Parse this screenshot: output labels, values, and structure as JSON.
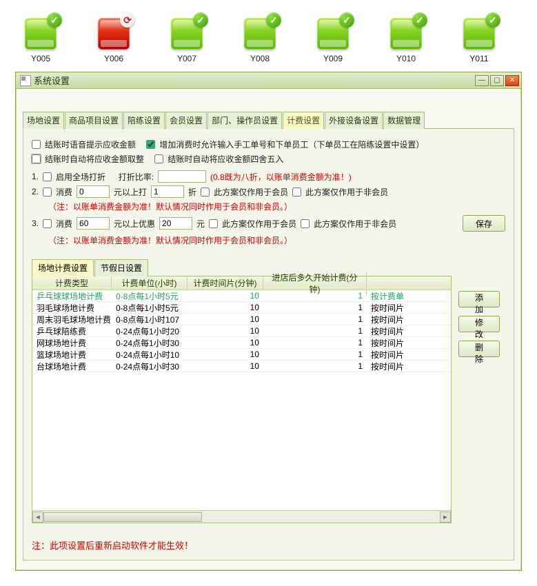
{
  "icons": [
    {
      "label": "Y005",
      "color": "green",
      "badge": "✓",
      "badgeStyle": "green"
    },
    {
      "label": "Y006",
      "color": "red",
      "badge": "⟳",
      "badgeStyle": "white"
    },
    {
      "label": "Y007",
      "color": "green",
      "badge": "✓",
      "badgeStyle": "green"
    },
    {
      "label": "Y008",
      "color": "green",
      "badge": "✓",
      "badgeStyle": "green"
    },
    {
      "label": "Y009",
      "color": "green",
      "badge": "✓",
      "badgeStyle": "green"
    },
    {
      "label": "Y010",
      "color": "green",
      "badge": "✓",
      "badgeStyle": "green"
    },
    {
      "label": "Y011",
      "color": "green",
      "badge": "✓",
      "badgeStyle": "green"
    }
  ],
  "dialog": {
    "title": "系统设置"
  },
  "tabs": [
    "场地设置",
    "商品项目设置",
    "陪练设置",
    "会员设置",
    "部门、操作员设置",
    "计费设置",
    "外接设备设置",
    "数据管理"
  ],
  "tabs_active_index": 5,
  "options": {
    "chk1_label": "结账时语音提示应收金额",
    "chk2_label": "增加消费时允许输入手工单号和下单员工（下单员工在陪练设置中设置）",
    "chk3_label": "结账时自动将应收金额取整",
    "chk4_label": "结账时自动将应收金额四舍五入"
  },
  "line1": {
    "num": "1.",
    "chk_label": "启用全场打折",
    "ratio_label": "打折比率:",
    "ratio_value": "",
    "note": "(0.8既为八折，以账单消费金额为准！)"
  },
  "line2": {
    "num": "2.",
    "l1": "消费",
    "v1": "0",
    "l2": "元以上打",
    "v2": "1",
    "l3": "折",
    "chk1": "此方案仅作用于会员",
    "chk2": "此方案仅作用于非会员",
    "note": "（注：以账单消费金额为准！默认情况同时作用于会员和非会员。）"
  },
  "line3": {
    "num": "3.",
    "l1": "消费",
    "v1": "60",
    "l2": "元以上优惠",
    "v2": "20",
    "l3": "元",
    "chk1": "此方案仅作用于会员",
    "chk2": "此方案仅作用于非会员",
    "note": "（注：以账单消费金额为准！默认情况同时作用于会员和非会员。）"
  },
  "save_label": "保存",
  "subtabs": [
    "场地计费设置",
    "节假日设置"
  ],
  "subtabs_active_index": 0,
  "table": {
    "headers": [
      "计费类型",
      "计费单位(小时)",
      "计费时间片(分钟)",
      "进店后多久开始计费(分钟)",
      ""
    ],
    "rows": [
      [
        "乒乓球球场地计费",
        "0-8点每1小时5元",
        "10",
        "1",
        "按计费单"
      ],
      [
        "羽毛球场地计费",
        "0-8点每1小时5元",
        "10",
        "1",
        "按时间片"
      ],
      [
        "周末羽毛球场地计费",
        "0-8点每1小时107",
        "10",
        "1",
        "按时间片"
      ],
      [
        "乒乓球陪练费",
        "0-24点每1小时20",
        "10",
        "1",
        "按时间片"
      ],
      [
        "网球场地计费",
        "0-24点每1小时30",
        "10",
        "1",
        "按时间片"
      ],
      [
        "篮球场地计费",
        "0-24点每1小时10",
        "10",
        "1",
        "按时间片"
      ],
      [
        "台球场地计费",
        "0-24点每1小时30",
        "10",
        "1",
        "按时间片"
      ]
    ],
    "selected_row_index": 0
  },
  "right_buttons": {
    "add": "添加",
    "edit": "修改",
    "delete": "删除"
  },
  "bottom_note": "注：此项设置后重新启动软件才能生效！",
  "colors": {
    "dialog_border": "#8aa84f",
    "panel_bg": "#f2f5e7",
    "tab_active_bg": "#f9f6c8",
    "highlight_text": "#28a25b",
    "red_text": "#d00",
    "header_grad_a": "#f1f6e2",
    "header_grad_b": "#e0eac6"
  }
}
